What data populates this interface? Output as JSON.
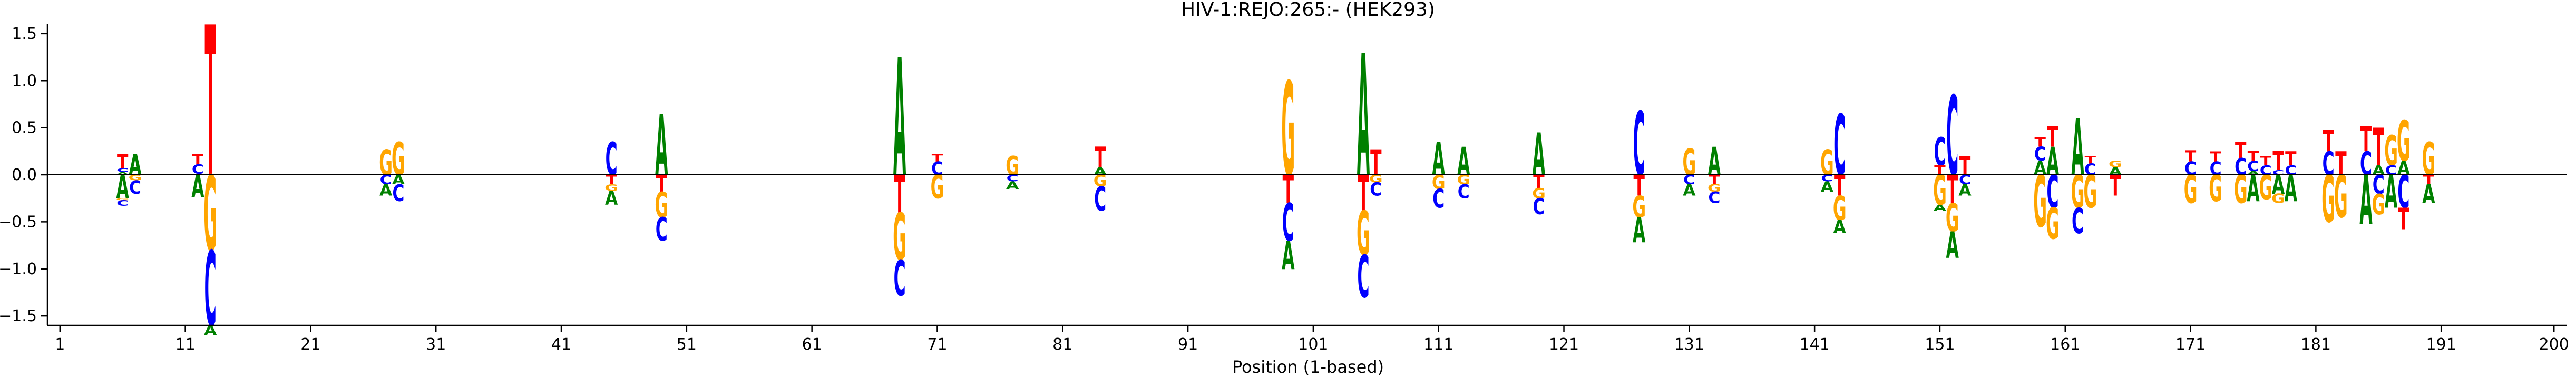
{
  "chart_data": {
    "type": "sequence-logo",
    "title": "HIV-1:REJO:265:-  (HEK293)",
    "xlabel": "Position (1-based)",
    "ylabel": "",
    "xlim": [
      0,
      201
    ],
    "ylim": [
      -1.6,
      1.6
    ],
    "x_ticks": [
      1,
      11,
      21,
      31,
      41,
      51,
      61,
      71,
      81,
      91,
      101,
      111,
      121,
      131,
      141,
      151,
      161,
      171,
      181,
      191,
      200
    ],
    "x_tick_labels": [
      "1",
      "11",
      "21",
      "31",
      "41",
      "51",
      "61",
      "71",
      "81",
      "91",
      "101",
      "111",
      "121",
      "131",
      "141",
      "151",
      "161",
      "171",
      "181",
      "191",
      "200"
    ],
    "y_ticks": [
      -1.5,
      -1.0,
      -0.5,
      0.0,
      0.5,
      1.0,
      1.5
    ],
    "y_tick_labels": [
      "−1.5",
      "−1.0",
      "−0.5",
      "0.0",
      "0.5",
      "1.0",
      "1.5"
    ],
    "colors": {
      "A": "#008000",
      "C": "#0000ff",
      "G": "#ffa500",
      "T": "#ff0000"
    },
    "zero_line": true,
    "grid": false,
    "positions": [
      {
        "x": 6,
        "stack": [
          [
            "T",
            0.07,
            0.22
          ],
          [
            "C",
            0.03,
            0.07
          ],
          [
            "A",
            0.0,
            0.03
          ],
          [
            "A",
            -0.25,
            0.0
          ],
          [
            "G",
            -0.27,
            -0.25
          ],
          [
            "C",
            -0.33,
            -0.27
          ]
        ]
      },
      {
        "x": 7,
        "stack": [
          [
            "A",
            0.0,
            0.22
          ],
          [
            "G",
            -0.06,
            0.0
          ],
          [
            "C",
            -0.2,
            -0.06
          ]
        ]
      },
      {
        "x": 12,
        "stack": [
          [
            "T",
            0.11,
            0.22
          ],
          [
            "C",
            0.01,
            0.11
          ],
          [
            "A",
            -0.24,
            0.0
          ]
        ]
      },
      {
        "x": 13,
        "stack": [
          [
            "T",
            0.0,
            1.6
          ],
          [
            "G",
            -0.8,
            0.0
          ],
          [
            "C",
            -1.6,
            -0.8
          ],
          [
            "A",
            -1.7,
            -1.6
          ]
        ]
      },
      {
        "x": 27,
        "stack": [
          [
            "G",
            0.0,
            0.27
          ],
          [
            "C",
            -0.1,
            0.0
          ],
          [
            "A",
            -0.22,
            -0.1
          ]
        ]
      },
      {
        "x": 28,
        "stack": [
          [
            "G",
            0.0,
            0.35
          ],
          [
            "A",
            -0.1,
            0.0
          ],
          [
            "C",
            -0.28,
            -0.1
          ]
        ]
      },
      {
        "x": 45,
        "stack": [
          [
            "C",
            0.0,
            0.35
          ],
          [
            "T",
            -0.1,
            0.0
          ],
          [
            "G",
            -0.17,
            -0.1
          ],
          [
            "A",
            -0.32,
            -0.17
          ]
        ]
      },
      {
        "x": 49,
        "stack": [
          [
            "A",
            0.0,
            0.65
          ],
          [
            "T",
            -0.18,
            0.0
          ],
          [
            "G",
            -0.45,
            -0.18
          ],
          [
            "C",
            -0.7,
            -0.45
          ]
        ]
      },
      {
        "x": 68,
        "stack": [
          [
            "A",
            0.0,
            1.25
          ],
          [
            "T",
            -0.4,
            0.0
          ],
          [
            "G",
            -0.9,
            -0.4
          ],
          [
            "C",
            -1.28,
            -0.9
          ]
        ]
      },
      {
        "x": 71,
        "stack": [
          [
            "T",
            0.14,
            0.22
          ],
          [
            "C",
            0.0,
            0.14
          ],
          [
            "G",
            -0.25,
            0.0
          ]
        ]
      },
      {
        "x": 77,
        "stack": [
          [
            "G",
            0.0,
            0.2
          ],
          [
            "C",
            -0.07,
            0.0
          ],
          [
            "A",
            -0.15,
            -0.07
          ]
        ]
      },
      {
        "x": 84,
        "stack": [
          [
            "T",
            0.08,
            0.3
          ],
          [
            "A",
            0.0,
            0.08
          ],
          [
            "G",
            -0.12,
            0.0
          ],
          [
            "C",
            -0.38,
            -0.12
          ]
        ]
      },
      {
        "x": 99,
        "stack": [
          [
            "G",
            0.0,
            1.0
          ],
          [
            "T",
            -0.3,
            0.0
          ],
          [
            "C",
            -0.7,
            -0.3
          ],
          [
            "A",
            -1.0,
            -0.7
          ]
        ]
      },
      {
        "x": 105,
        "stack": [
          [
            "A",
            0.0,
            1.3
          ],
          [
            "T",
            -0.38,
            0.0
          ],
          [
            "G",
            -0.85,
            -0.38
          ],
          [
            "C",
            -1.3,
            -0.85
          ]
        ]
      },
      {
        "x": 106,
        "stack": [
          [
            "T",
            0.0,
            0.27
          ],
          [
            "G",
            -0.08,
            0.0
          ],
          [
            "C",
            -0.22,
            -0.08
          ]
        ]
      },
      {
        "x": 111,
        "stack": [
          [
            "A",
            0.0,
            0.35
          ],
          [
            "G",
            -0.15,
            0.0
          ],
          [
            "C",
            -0.35,
            -0.15
          ]
        ]
      },
      {
        "x": 113,
        "stack": [
          [
            "A",
            0.0,
            0.3
          ],
          [
            "G",
            -0.1,
            0.0
          ],
          [
            "C",
            -0.25,
            -0.1
          ]
        ]
      },
      {
        "x": 119,
        "stack": [
          [
            "A",
            0.0,
            0.45
          ],
          [
            "T",
            -0.14,
            0.0
          ],
          [
            "G",
            -0.25,
            -0.14
          ],
          [
            "C",
            -0.42,
            -0.25
          ]
        ]
      },
      {
        "x": 127,
        "stack": [
          [
            "C",
            0.0,
            0.68
          ],
          [
            "T",
            -0.22,
            0.0
          ],
          [
            "G",
            -0.45,
            -0.22
          ],
          [
            "A",
            -0.72,
            -0.45
          ]
        ]
      },
      {
        "x": 131,
        "stack": [
          [
            "G",
            0.0,
            0.28
          ],
          [
            "C",
            -0.1,
            0.0
          ],
          [
            "A",
            -0.22,
            -0.1
          ]
        ]
      },
      {
        "x": 133,
        "stack": [
          [
            "A",
            0.0,
            0.3
          ],
          [
            "T",
            -0.1,
            0.0
          ],
          [
            "G",
            -0.18,
            -0.1
          ],
          [
            "C",
            -0.3,
            -0.18
          ]
        ]
      },
      {
        "x": 142,
        "stack": [
          [
            "G",
            0.0,
            0.27
          ],
          [
            "C",
            -0.07,
            0.0
          ],
          [
            "A",
            -0.18,
            -0.07
          ]
        ]
      },
      {
        "x": 143,
        "stack": [
          [
            "C",
            0.0,
            0.65
          ],
          [
            "T",
            -0.22,
            0.0
          ],
          [
            "G",
            -0.48,
            -0.22
          ],
          [
            "A",
            -0.62,
            -0.48
          ]
        ]
      },
      {
        "x": 151,
        "stack": [
          [
            "C",
            0.1,
            0.4
          ],
          [
            "T",
            0.0,
            0.1
          ],
          [
            "G",
            -0.32,
            0.0
          ],
          [
            "A",
            -0.38,
            -0.32
          ]
        ]
      },
      {
        "x": 152,
        "stack": [
          [
            "C",
            0.0,
            0.85
          ],
          [
            "T",
            -0.3,
            0.0
          ],
          [
            "G",
            -0.6,
            -0.3
          ],
          [
            "A",
            -0.88,
            -0.6
          ]
        ]
      },
      {
        "x": 153,
        "stack": [
          [
            "T",
            0.0,
            0.2
          ],
          [
            "C",
            -0.1,
            0.0
          ],
          [
            "A",
            -0.22,
            -0.1
          ]
        ]
      },
      {
        "x": 159,
        "stack": [
          [
            "T",
            0.3,
            0.4
          ],
          [
            "C",
            0.15,
            0.3
          ],
          [
            "A",
            0.0,
            0.15
          ],
          [
            "G",
            -0.55,
            0.0
          ]
        ]
      },
      {
        "x": 160,
        "stack": [
          [
            "T",
            0.3,
            0.52
          ],
          [
            "A",
            0.0,
            0.3
          ],
          [
            "C",
            -0.35,
            0.0
          ],
          [
            "G",
            -0.68,
            -0.35
          ]
        ]
      },
      {
        "x": 162,
        "stack": [
          [
            "A",
            0.0,
            0.6
          ],
          [
            "G",
            -0.35,
            0.0
          ],
          [
            "C",
            -0.62,
            -0.35
          ]
        ]
      },
      {
        "x": 163,
        "stack": [
          [
            "T",
            0.12,
            0.2
          ],
          [
            "C",
            0.0,
            0.12
          ],
          [
            "G",
            -0.35,
            0.0
          ]
        ]
      },
      {
        "x": 165,
        "stack": [
          [
            "G",
            0.08,
            0.15
          ],
          [
            "A",
            0.0,
            0.08
          ],
          [
            "T",
            -0.22,
            0.0
          ]
        ]
      },
      {
        "x": 171,
        "stack": [
          [
            "T",
            0.14,
            0.26
          ],
          [
            "C",
            0.0,
            0.14
          ],
          [
            "G",
            -0.3,
            0.0
          ]
        ]
      },
      {
        "x": 173,
        "stack": [
          [
            "T",
            0.14,
            0.25
          ],
          [
            "C",
            0.0,
            0.14
          ],
          [
            "G",
            -0.28,
            0.0
          ]
        ]
      },
      {
        "x": 175,
        "stack": [
          [
            "T",
            0.18,
            0.35
          ],
          [
            "C",
            0.0,
            0.18
          ],
          [
            "G",
            -0.3,
            0.0
          ]
        ]
      },
      {
        "x": 176,
        "stack": [
          [
            "T",
            0.15,
            0.25
          ],
          [
            "C",
            0.04,
            0.15
          ],
          [
            "A",
            0.0,
            0.04
          ],
          [
            "A",
            -0.28,
            0.0
          ]
        ]
      },
      {
        "x": 177,
        "stack": [
          [
            "T",
            0.1,
            0.2
          ],
          [
            "C",
            0.0,
            0.1
          ],
          [
            "G",
            -0.26,
            0.0
          ]
        ]
      },
      {
        "x": 178,
        "stack": [
          [
            "T",
            0.05,
            0.25
          ],
          [
            "C",
            0.0,
            0.05
          ],
          [
            "A",
            -0.2,
            0.0
          ],
          [
            "G",
            -0.3,
            -0.2
          ]
        ]
      },
      {
        "x": 179,
        "stack": [
          [
            "T",
            0.1,
            0.25
          ],
          [
            "C",
            0.0,
            0.1
          ],
          [
            "A",
            -0.28,
            0.0
          ]
        ]
      },
      {
        "x": 182,
        "stack": [
          [
            "T",
            0.25,
            0.48
          ],
          [
            "C",
            0.0,
            0.25
          ],
          [
            "G",
            -0.5,
            0.0
          ]
        ]
      },
      {
        "x": 183,
        "stack": [
          [
            "T",
            0.0,
            0.25
          ],
          [
            "G",
            -0.45,
            0.0
          ]
        ]
      },
      {
        "x": 185,
        "stack": [
          [
            "T",
            0.25,
            0.52
          ],
          [
            "C",
            0.0,
            0.25
          ],
          [
            "A",
            -0.52,
            0.0
          ]
        ]
      },
      {
        "x": 186,
        "stack": [
          [
            "T",
            0.1,
            0.5
          ],
          [
            "A",
            0.0,
            0.1
          ],
          [
            "C",
            -0.2,
            0.0
          ],
          [
            "G",
            -0.42,
            -0.2
          ]
        ]
      },
      {
        "x": 187,
        "stack": [
          [
            "G",
            0.1,
            0.42
          ],
          [
            "C",
            0.0,
            0.1
          ],
          [
            "A",
            -0.35,
            0.0
          ]
        ]
      },
      {
        "x": 188,
        "stack": [
          [
            "G",
            0.15,
            0.58
          ],
          [
            "A",
            0.0,
            0.15
          ],
          [
            "C",
            -0.35,
            0.0
          ],
          [
            "T",
            -0.58,
            -0.35
          ]
        ]
      },
      {
        "x": 190,
        "stack": [
          [
            "G",
            0.0,
            0.35
          ],
          [
            "T",
            -0.1,
            0.0
          ],
          [
            "A",
            -0.3,
            -0.1
          ]
        ]
      }
    ]
  }
}
